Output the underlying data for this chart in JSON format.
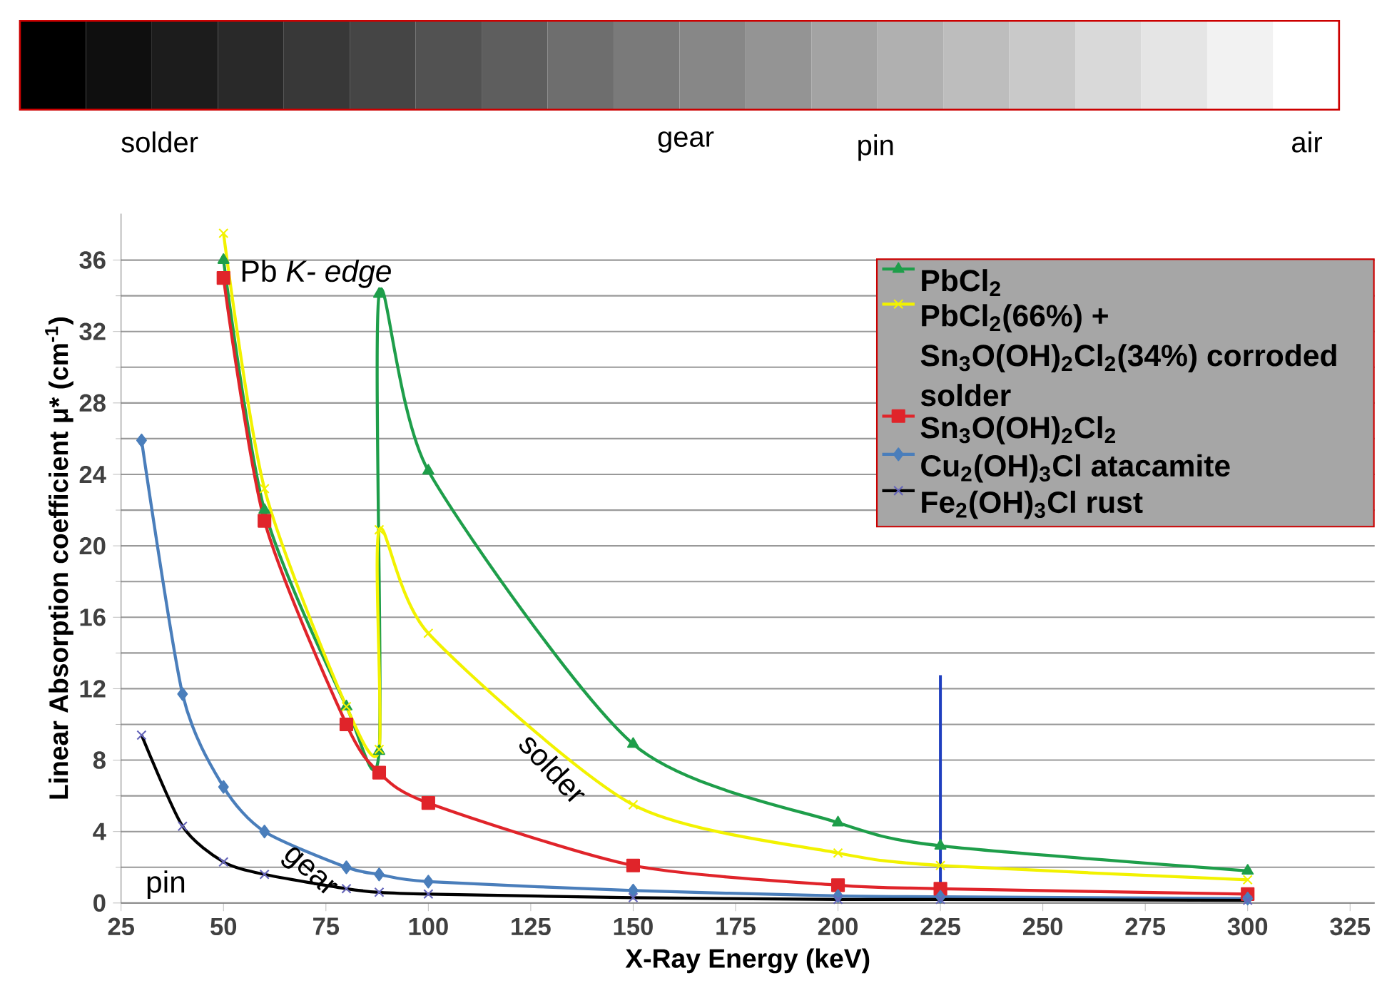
{
  "chart_data": {
    "type": "line",
    "xlabel": "X-Ray Energy (keV)",
    "ylabel": "Linear Absorption coefficient μ* (cm$^{-1}$)",
    "xlim": [
      25,
      331
    ],
    "ylim": [
      0,
      38.6
    ],
    "xticks": [
      25,
      50,
      75,
      100,
      125,
      150,
      175,
      200,
      225,
      250,
      275,
      300,
      325
    ],
    "yticks": [
      0,
      4,
      8,
      12,
      16,
      20,
      24,
      28,
      32,
      36
    ],
    "grid": "y",
    "legend": "top right",
    "series": [
      {
        "name": "PbCl$_{2}$",
        "color": "#1e9e4a",
        "marker": "triangle",
        "x": [
          50,
          60,
          80,
          88,
          88,
          100,
          150,
          200,
          225,
          300
        ],
        "values": [
          36,
          22,
          11,
          8.5,
          34.1,
          24.2,
          8.9,
          4.5,
          3.2,
          1.8
        ]
      },
      {
        "name": "PbCl$_{2}$(66%) + Sn$_{3}$O(OH)$_{2}$Cl$_{2}$(34%) corroded solder",
        "color": "#f2f200",
        "marker": "cross",
        "x": [
          50,
          60,
          80,
          88,
          88,
          100,
          150,
          200,
          225,
          300
        ],
        "values": [
          37.5,
          23.2,
          11,
          8.6,
          20.9,
          15.1,
          5.5,
          2.8,
          2.1,
          1.3
        ]
      },
      {
        "name": "Sn$_{3}$O(OH)$_{2}$Cl$_{2}$",
        "color": "#e0242a",
        "marker": "square",
        "x": [
          50,
          60,
          80,
          88,
          100,
          150,
          200,
          225,
          300
        ],
        "values": [
          35,
          21.4,
          10,
          7.3,
          5.6,
          2.1,
          1,
          0.8,
          0.5
        ]
      },
      {
        "name": "Cu$_{2}$(OH)$_{3}$Cl atacamite",
        "color": "#4a7ebb",
        "marker": "diamond",
        "x": [
          30,
          40,
          50,
          60,
          80,
          88,
          100,
          150,
          200,
          225,
          300
        ],
        "values": [
          25.9,
          11.7,
          6.5,
          4,
          2,
          1.6,
          1.2,
          0.7,
          0.4,
          0.35,
          0.25
        ]
      },
      {
        "name": "Fe$_{2}$(OH)$_{3}$Cl rust",
        "color": "#000000",
        "marker": "cross",
        "x": [
          30,
          40,
          50,
          60,
          80,
          88,
          100,
          150,
          200,
          225,
          300
        ],
        "values": [
          9.4,
          4.3,
          2.3,
          1.6,
          0.8,
          0.6,
          0.5,
          0.3,
          0.2,
          0.2,
          0.15
        ]
      }
    ],
    "ref_lines": [
      {
        "axis": "x",
        "value": 225,
        "color": "#1f3fbf"
      }
    ],
    "annotations": [
      {
        "text": "Pb *K- edge*",
        "x": 88,
        "y": 34.1
      },
      {
        "text": "solder",
        "x": 125,
        "y": 10.3
      },
      {
        "text": "gear",
        "x": 65,
        "y": 3.3
      },
      {
        "text": "pin",
        "x": 35,
        "y": 6.2
      },
      "solder",
      "gear",
      "pin",
      "air"
    ]
  }
}
